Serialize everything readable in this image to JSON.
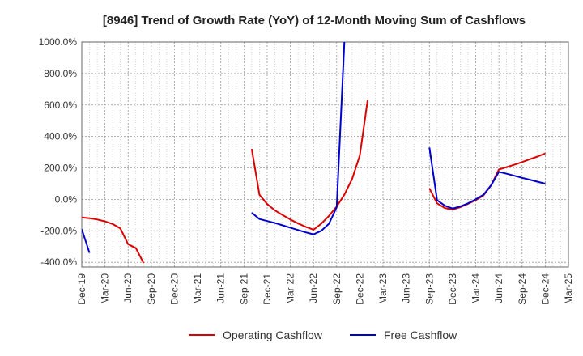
{
  "chart_data": {
    "type": "line",
    "title": "[8946]  Trend of Growth Rate (YoY) of 12-Month Moving Sum of Cashflows",
    "xlabel": "",
    "ylabel": "",
    "ylim": [
      -430,
      1000
    ],
    "yticks": [
      -400,
      -200,
      0,
      200,
      400,
      600,
      800,
      1000
    ],
    "ytick_labels": [
      "-400.0%",
      "-200.0%",
      "0.0%",
      "200.0%",
      "400.0%",
      "600.0%",
      "800.0%",
      "1000.0%"
    ],
    "xlim": [
      "2019-12",
      "2025-03"
    ],
    "xticks": [
      "2019-12",
      "2020-03",
      "2020-06",
      "2020-09",
      "2020-12",
      "2021-03",
      "2021-06",
      "2021-09",
      "2021-12",
      "2022-03",
      "2022-06",
      "2022-09",
      "2022-12",
      "2023-03",
      "2023-06",
      "2023-09",
      "2023-12",
      "2024-03",
      "2024-06",
      "2024-09",
      "2024-12",
      "2025-03"
    ],
    "xtick_labels": [
      "Dec-19",
      "Mar-20",
      "Jun-20",
      "Sep-20",
      "Dec-20",
      "Mar-21",
      "Jun-21",
      "Sep-21",
      "Dec-21",
      "Mar-22",
      "Jun-22",
      "Sep-22",
      "Dec-22",
      "Mar-23",
      "Jun-23",
      "Sep-23",
      "Dec-23",
      "Mar-24",
      "Jun-24",
      "Sep-24",
      "Dec-24",
      "Mar-25"
    ],
    "grid": true,
    "legend_position": "bottom",
    "series": [
      {
        "name": "Operating Cashflow",
        "color": "#dd0000",
        "segments": [
          [
            [
              "2019-12",
              -115
            ],
            [
              "2020-01",
              -120
            ],
            [
              "2020-02",
              -128
            ],
            [
              "2020-03",
              -140
            ],
            [
              "2020-04",
              -157
            ],
            [
              "2020-05",
              -185
            ],
            [
              "2020-06",
              -285
            ],
            [
              "2020-07",
              -310
            ],
            [
              "2020-08",
              -405
            ]
          ],
          [
            [
              "2021-10",
              320
            ],
            [
              "2021-11",
              30
            ],
            [
              "2021-12",
              -30
            ],
            [
              "2022-01",
              -70
            ],
            [
              "2022-02",
              -100
            ],
            [
              "2022-03",
              -128
            ],
            [
              "2022-04",
              -153
            ],
            [
              "2022-05",
              -175
            ],
            [
              "2022-06",
              -193
            ],
            [
              "2022-07",
              -155
            ],
            [
              "2022-08",
              -105
            ],
            [
              "2022-09",
              -45
            ],
            [
              "2022-10",
              30
            ],
            [
              "2022-11",
              130
            ],
            [
              "2022-12",
              280
            ],
            [
              "2023-01",
              630
            ]
          ],
          [
            [
              "2023-09",
              70
            ],
            [
              "2023-10",
              -25
            ],
            [
              "2023-11",
              -55
            ],
            [
              "2023-12",
              -65
            ],
            [
              "2024-01",
              -50
            ],
            [
              "2024-02",
              -28
            ],
            [
              "2024-03",
              -5
            ],
            [
              "2024-04",
              25
            ],
            [
              "2024-05",
              90
            ],
            [
              "2024-06",
              190
            ],
            [
              "2024-07",
              205
            ],
            [
              "2024-08",
              220
            ],
            [
              "2024-09",
              237
            ],
            [
              "2024-10",
              255
            ],
            [
              "2024-11",
              272
            ],
            [
              "2024-12",
              292
            ]
          ]
        ]
      },
      {
        "name": "Free Cashflow",
        "color": "#0000cc",
        "segments": [
          [
            [
              "2019-12",
              -190
            ],
            [
              "2020-01",
              -340
            ]
          ],
          [
            [
              "2021-10",
              -85
            ],
            [
              "2021-11",
              -125
            ],
            [
              "2021-12",
              -138
            ],
            [
              "2022-01",
              -150
            ],
            [
              "2022-02",
              -165
            ],
            [
              "2022-03",
              -180
            ],
            [
              "2022-04",
              -195
            ],
            [
              "2022-05",
              -210
            ],
            [
              "2022-06",
              -222
            ],
            [
              "2022-07",
              -200
            ],
            [
              "2022-08",
              -155
            ],
            [
              "2022-09",
              -50
            ],
            [
              "2022-10",
              1000
            ]
          ],
          [
            [
              "2023-09",
              330
            ],
            [
              "2023-10",
              -5
            ],
            [
              "2023-11",
              -40
            ],
            [
              "2023-12",
              -58
            ],
            [
              "2024-01",
              -45
            ],
            [
              "2024-02",
              -25
            ],
            [
              "2024-03",
              0
            ],
            [
              "2024-04",
              30
            ],
            [
              "2024-05",
              90
            ],
            [
              "2024-06",
              175
            ],
            [
              "2024-07",
              163
            ],
            [
              "2024-08",
              150
            ],
            [
              "2024-09",
              137
            ],
            [
              "2024-10",
              125
            ],
            [
              "2024-11",
              112
            ],
            [
              "2024-12",
              100
            ]
          ]
        ]
      }
    ]
  }
}
